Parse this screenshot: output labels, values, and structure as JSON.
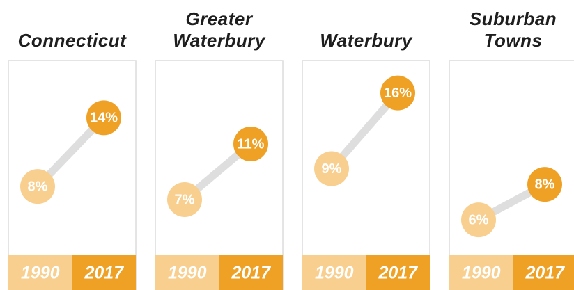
{
  "chart_data": [
    {
      "type": "slope",
      "title": "Connecticut",
      "categories": [
        "1990",
        "2017"
      ],
      "values": [
        8,
        14
      ],
      "value_labels": [
        "8%",
        "14%"
      ],
      "colors": [
        "#f8cf8e",
        "#efa125"
      ],
      "line_color": "#dedede",
      "ylim": [
        2,
        19
      ]
    },
    {
      "type": "slope",
      "title": "Greater Waterbury",
      "categories": [
        "1990",
        "2017"
      ],
      "values": [
        7,
        11
      ],
      "value_labels": [
        "7%",
        "11%"
      ],
      "colors": [
        "#f8cf8e",
        "#efa125"
      ],
      "line_color": "#dedede",
      "ylim": [
        3,
        17
      ]
    },
    {
      "type": "slope",
      "title": "Waterbury",
      "categories": [
        "1990",
        "2017"
      ],
      "values": [
        9,
        16
      ],
      "value_labels": [
        "9%",
        "16%"
      ],
      "colors": [
        "#f8cf8e",
        "#efa125"
      ],
      "line_color": "#dedede",
      "ylim": [
        1,
        19
      ]
    },
    {
      "type": "slope",
      "title": "Suburban Towns",
      "categories": [
        "1990",
        "2017"
      ],
      "values": [
        6,
        8
      ],
      "value_labels": [
        "6%",
        "8%"
      ],
      "colors": [
        "#f8cf8e",
        "#efa125"
      ],
      "line_color": "#dedede",
      "ylim": [
        4,
        15
      ]
    }
  ]
}
